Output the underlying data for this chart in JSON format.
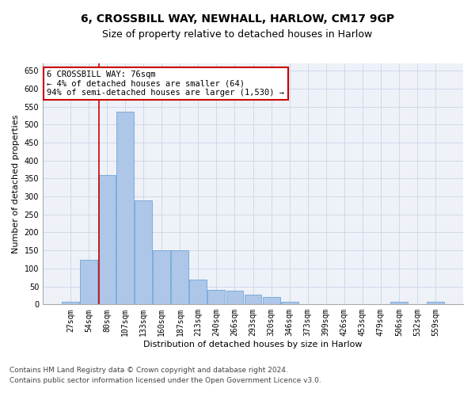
{
  "title1": "6, CROSSBILL WAY, NEWHALL, HARLOW, CM17 9GP",
  "title2": "Size of property relative to detached houses in Harlow",
  "xlabel": "Distribution of detached houses by size in Harlow",
  "ylabel": "Number of detached properties",
  "categories": [
    "27sqm",
    "54sqm",
    "80sqm",
    "107sqm",
    "133sqm",
    "160sqm",
    "187sqm",
    "213sqm",
    "240sqm",
    "266sqm",
    "293sqm",
    "320sqm",
    "346sqm",
    "373sqm",
    "399sqm",
    "426sqm",
    "453sqm",
    "479sqm",
    "506sqm",
    "532sqm",
    "559sqm"
  ],
  "values": [
    8,
    125,
    360,
    535,
    290,
    150,
    150,
    68,
    40,
    38,
    28,
    20,
    7,
    0,
    0,
    0,
    0,
    0,
    8,
    0,
    8
  ],
  "bar_color": "#aec6e8",
  "bar_edge_color": "#5b9bd5",
  "annotation_text": "6 CROSSBILL WAY: 76sqm\n← 4% of detached houses are smaller (64)\n94% of semi-detached houses are larger (1,530) →",
  "annotation_box_color": "#ffffff",
  "annotation_box_edge_color": "#cc0000",
  "vline_color": "#cc0000",
  "grid_color": "#d0d8e8",
  "background_color": "#eef2f8",
  "ylim": [
    0,
    670
  ],
  "yticks": [
    0,
    50,
    100,
    150,
    200,
    250,
    300,
    350,
    400,
    450,
    500,
    550,
    600,
    650
  ],
  "footer1": "Contains HM Land Registry data © Crown copyright and database right 2024.",
  "footer2": "Contains public sector information licensed under the Open Government Licence v3.0.",
  "title1_fontsize": 10,
  "title2_fontsize": 9,
  "xlabel_fontsize": 8,
  "ylabel_fontsize": 8,
  "tick_fontsize": 7,
  "annotation_fontsize": 7.5,
  "footer_fontsize": 6.5,
  "vline_x": 1.55
}
